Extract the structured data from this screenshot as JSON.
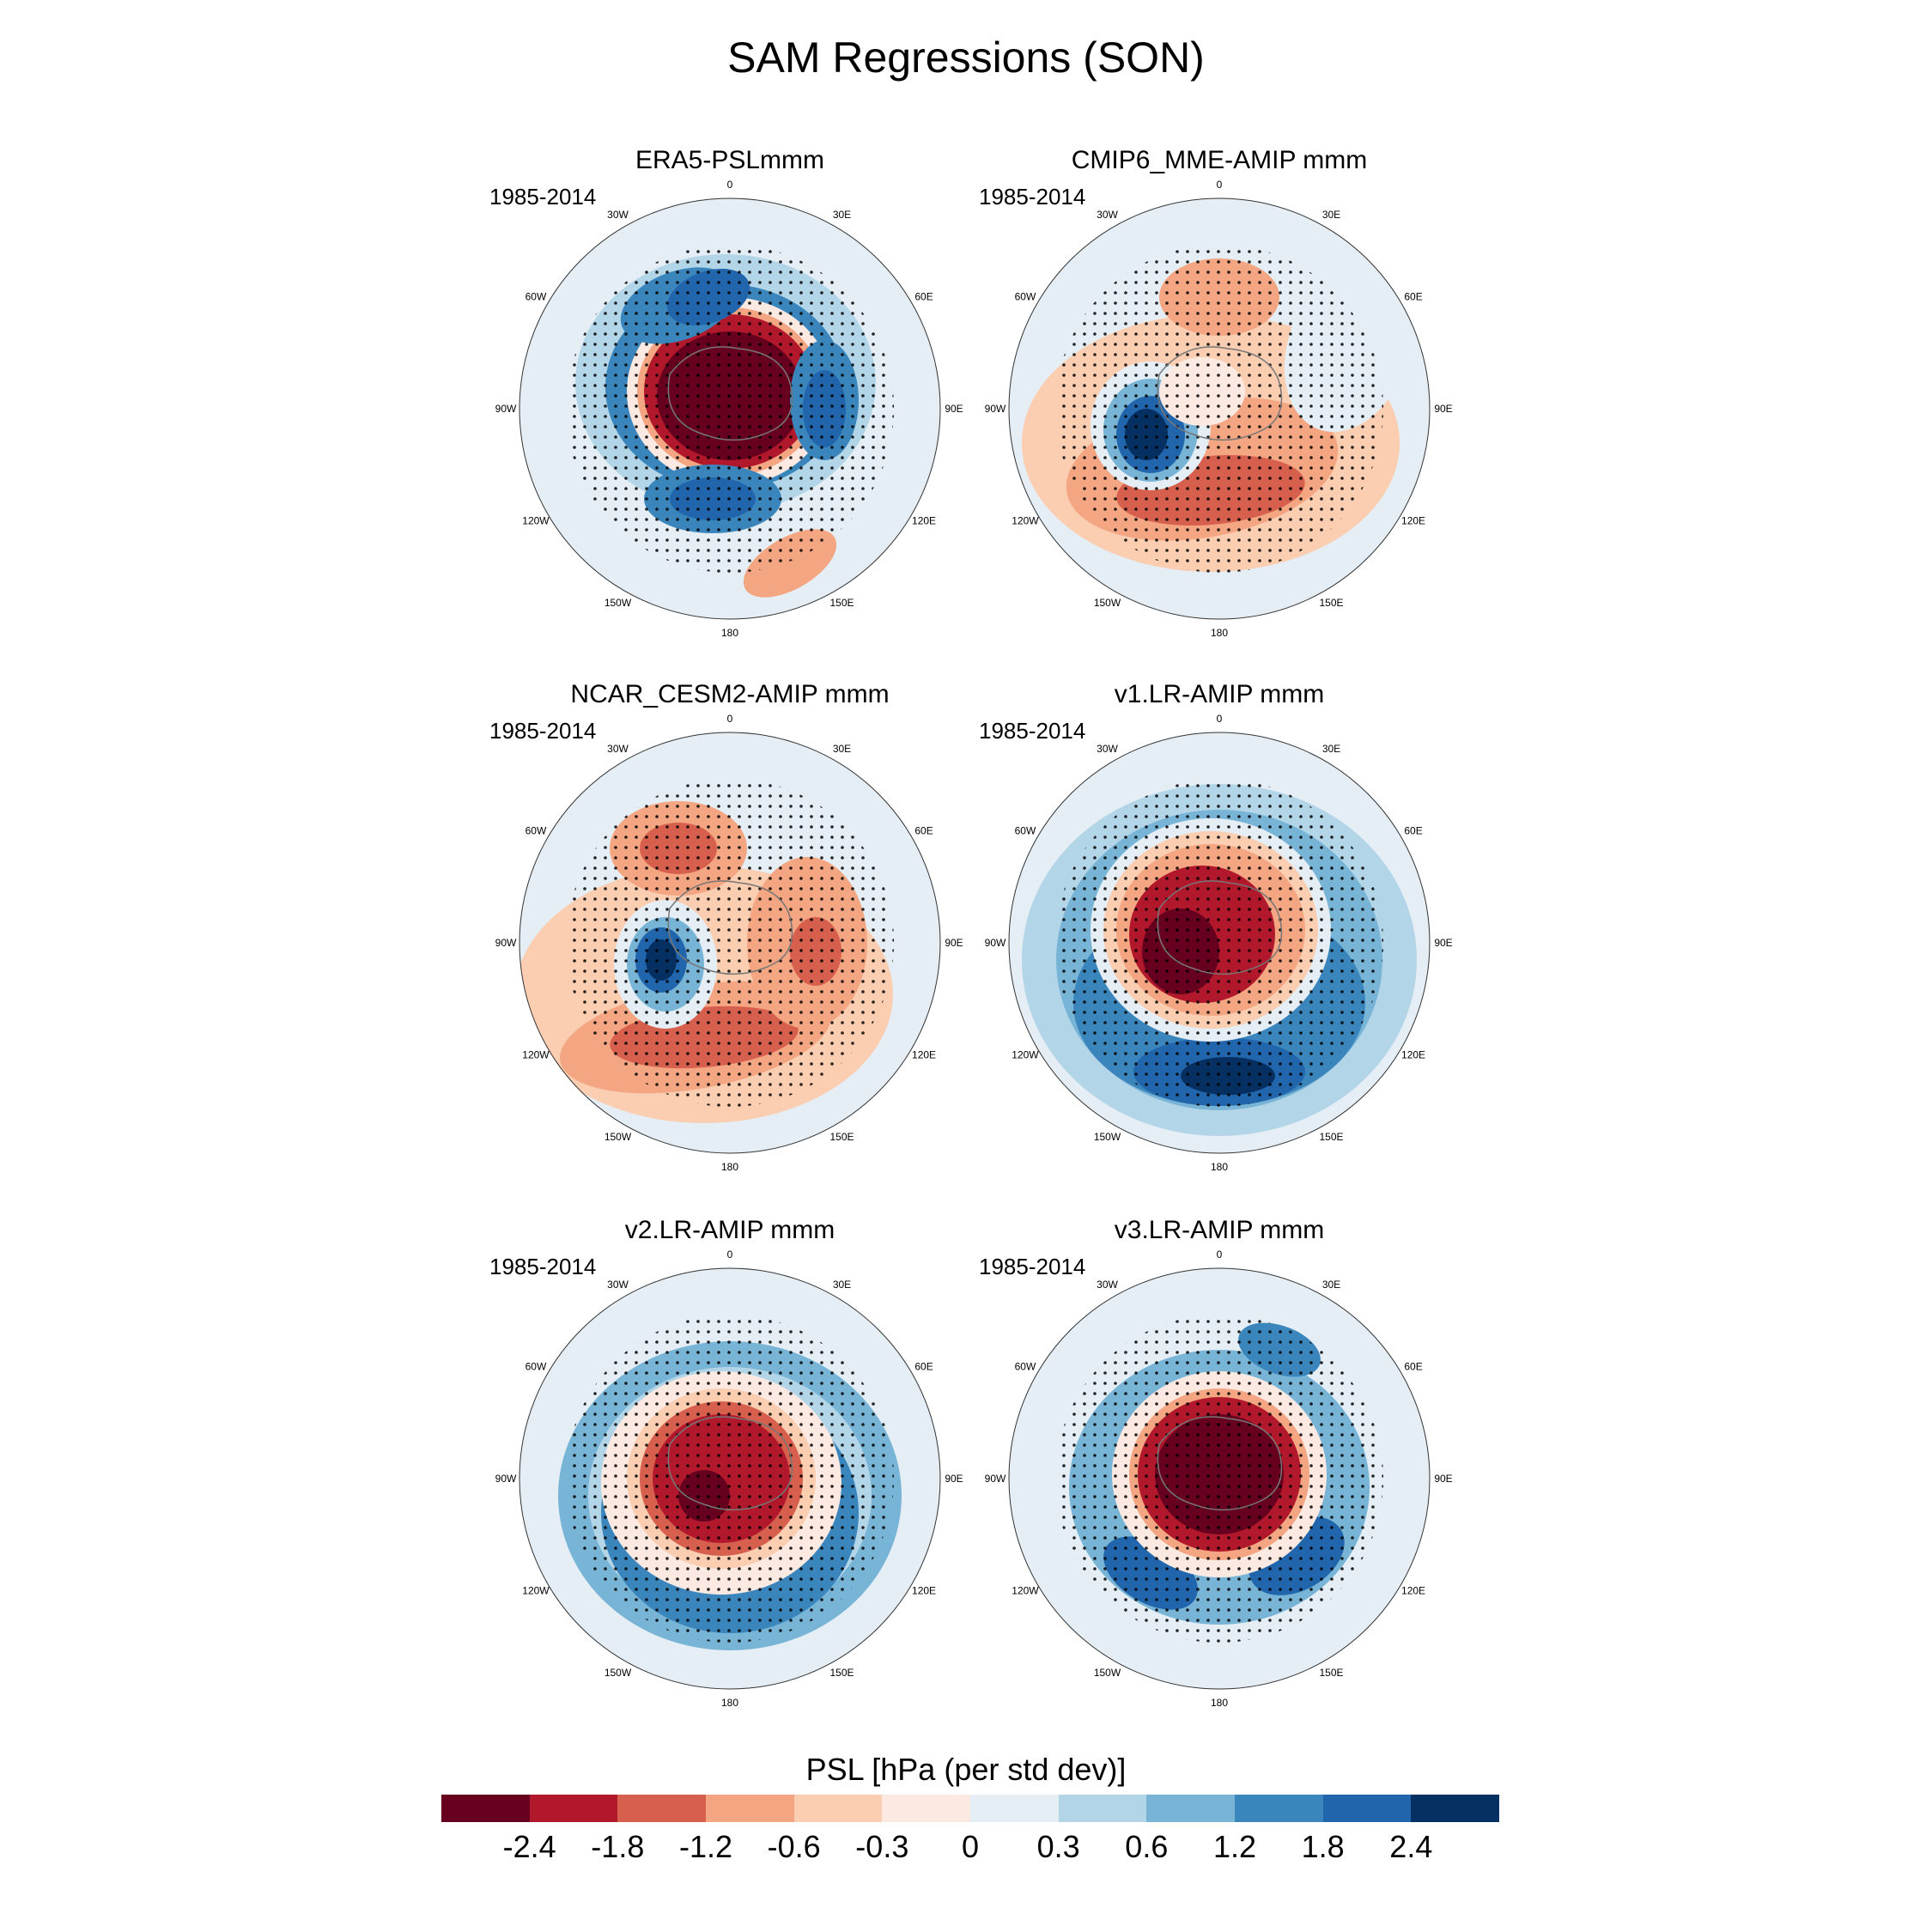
{
  "title": "SAM Regressions (SON)",
  "colorbar": {
    "title": "PSL [hPa (per std dev)]",
    "ticks": [
      "-2.4",
      "-1.8",
      "-1.2",
      "-0.6",
      "-0.3",
      "0",
      "0.3",
      "0.6",
      "1.2",
      "1.8",
      "2.4"
    ],
    "colors": [
      "#67001f",
      "#b2182b",
      "#d6604d",
      "#f4a582",
      "#fbcdb1",
      "#fbe9e2",
      "#e4eef4",
      "#b3d5e8",
      "#78b4d6",
      "#3b85bd",
      "#2166ac",
      "#053061"
    ]
  },
  "lon_labels": [
    "0",
    "30E",
    "60E",
    "90E",
    "120E",
    "150E",
    "180",
    "150W",
    "120W",
    "90W",
    "60W",
    "30W"
  ],
  "panels": [
    {
      "title": "ERA5-PSLmmm",
      "period": "1985-2014"
    },
    {
      "title": "CMIP6_MME-AMIP  mmm",
      "period": "1985-2014"
    },
    {
      "title": "NCAR_CESM2-AMIP  mmm",
      "period": "1985-2014"
    },
    {
      "title": "v1.LR-AMIP  mmm",
      "period": "1985-2014"
    },
    {
      "title": "v2.LR-AMIP  mmm",
      "period": "1985-2014"
    },
    {
      "title": "v3.LR-AMIP  mmm",
      "period": "1985-2014"
    }
  ]
}
